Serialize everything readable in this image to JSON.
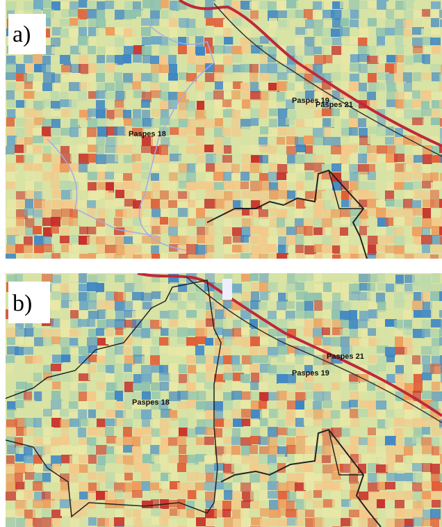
{
  "panels": [
    {
      "label": "a)",
      "places": [
        "Paspes 21",
        "Paspes 19",
        "Paspes 18"
      ]
    },
    {
      "label": "b)",
      "places": [
        "Paspes 21",
        "Paspes 19",
        "Paspes 18"
      ]
    }
  ]
}
